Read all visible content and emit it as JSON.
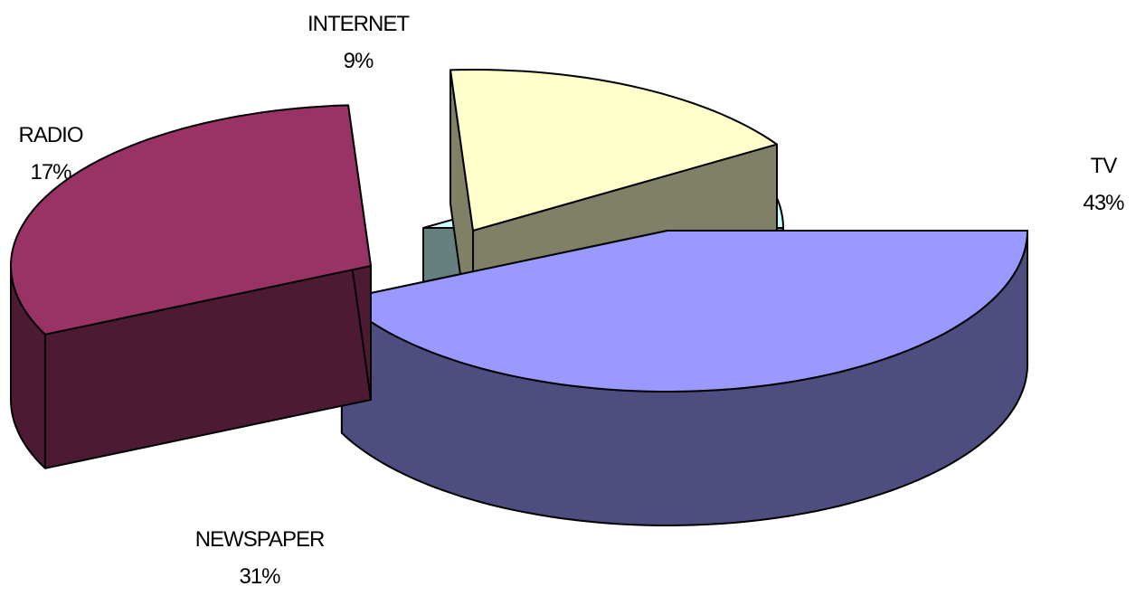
{
  "chart_data": {
    "type": "pie",
    "variant": "3d-exploded",
    "title": "",
    "slices": [
      {
        "label": "TV",
        "value": 43,
        "value_label": "43%",
        "color": "#9999FF",
        "side_color": "#4D4D80"
      },
      {
        "label": "NEWSPAPER",
        "value": 31,
        "value_label": "31%",
        "color": "#993366",
        "side_color": "#4D1A33"
      },
      {
        "label": "RADIO",
        "value": 17,
        "value_label": "17%",
        "color": "#FFFFCC",
        "side_color": "#808066"
      },
      {
        "label": "INTERNET",
        "value": 9,
        "value_label": "9%",
        "color": "#CCFFFF",
        "side_color": "#668080"
      }
    ],
    "legend": "none",
    "data_labels": "category and percent, outside slices"
  }
}
